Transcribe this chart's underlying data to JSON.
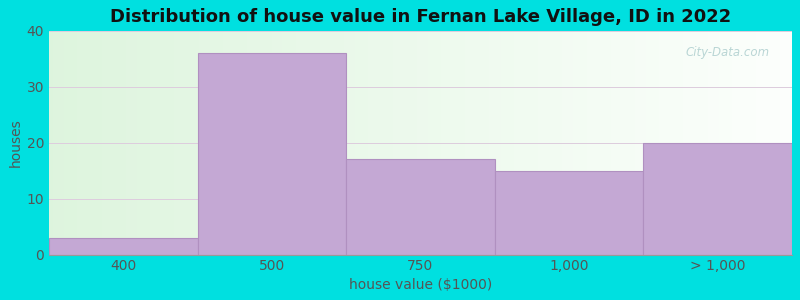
{
  "categories": [
    "400",
    "500",
    "750",
    "1,000",
    "> 1,000"
  ],
  "values": [
    3,
    36,
    17,
    15,
    20
  ],
  "bar_color": "#c4a8d4",
  "bar_edge_color": "#b090c0",
  "title": "Distribution of house value in Fernan Lake Village, ID in 2022",
  "xlabel": "house value ($1000)",
  "ylabel": "houses",
  "ylim": [
    0,
    40
  ],
  "yticks": [
    0,
    10,
    20,
    30,
    40
  ],
  "outer_bg": "#00e0e0",
  "watermark": "City-Data.com",
  "title_fontsize": 13,
  "label_fontsize": 10,
  "tick_fontsize": 10,
  "figsize": [
    8.0,
    3.0
  ],
  "dpi": 100
}
